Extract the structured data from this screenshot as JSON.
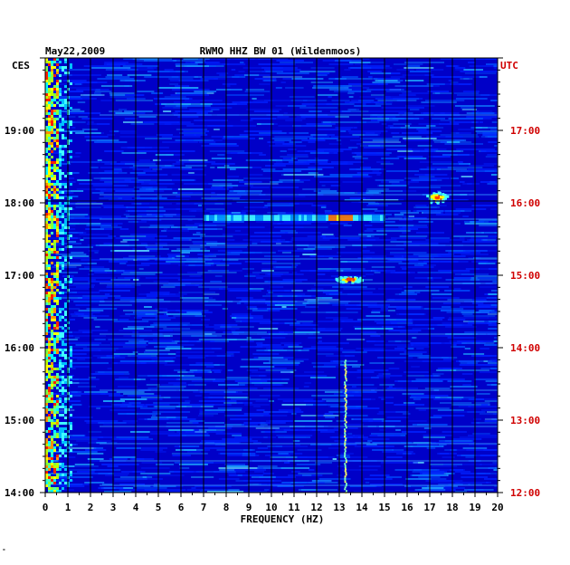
{
  "chart_data": {
    "type": "heatmap",
    "date": "May22,2009",
    "title": "RWMO HHZ BW 01 (Wildenmoos)",
    "xlabel": "FREQUENCY (HZ)",
    "left_axis_label": "CES",
    "right_axis_label": "UTC",
    "xlim": [
      0,
      20
    ],
    "x_ticks": [
      "0",
      "1",
      "2",
      "3",
      "4",
      "5",
      "6",
      "7",
      "8",
      "9",
      "10",
      "11",
      "12",
      "13",
      "14",
      "15",
      "16",
      "17",
      "18",
      "19",
      "20"
    ],
    "left_ticks": [
      "19:00",
      "18:00",
      "17:00",
      "16:00",
      "15:00",
      "14:00"
    ],
    "right_ticks": [
      "17:00",
      "16:00",
      "15:00",
      "14:00",
      "13:00",
      "12:00"
    ],
    "time_range_ces": [
      "14:00",
      "20:00"
    ],
    "colors": {
      "background": "#0000c8",
      "grid": "#000000",
      "left_axis_text": "#000000",
      "right_axis_text": "#d00000"
    },
    "features": [
      {
        "name": "low-frequency band",
        "freq_hz": [
          0,
          1.2
        ],
        "time_ces": [
          "14:00",
          "20:00"
        ]
      },
      {
        "name": "signal at 13 Hz",
        "freq_hz": [
          13.2,
          13.3
        ],
        "time_ces": [
          "14:00",
          "15:50"
        ]
      },
      {
        "name": "burst at 17.3 Hz",
        "freq_hz": [
          16.8,
          17.8
        ],
        "time_ces": [
          "18:00",
          "18:10"
        ]
      },
      {
        "name": "broadband event",
        "freq_hz": [
          7,
          15
        ],
        "time_ces": [
          "17:45",
          "17:50"
        ]
      },
      {
        "name": "event near 13 Hz",
        "freq_hz": [
          12.8,
          14.0
        ],
        "time_ces": [
          "16:55",
          "17:00"
        ]
      }
    ]
  },
  "footer_mark": "˚"
}
